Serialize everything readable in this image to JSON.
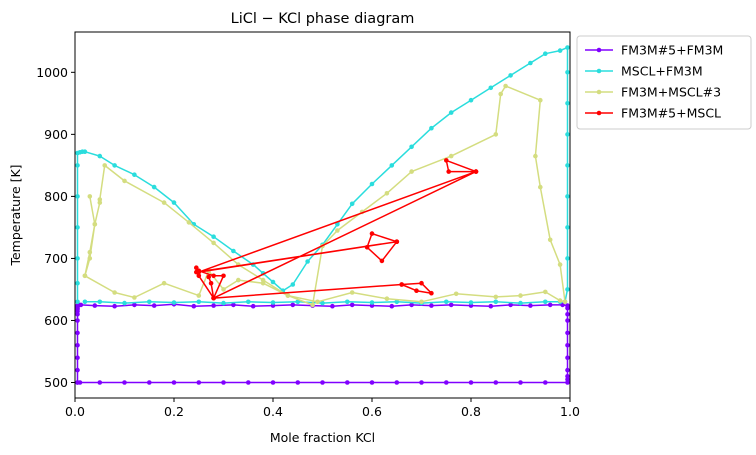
{
  "chart_data": {
    "type": "line",
    "title": "LiCl − KCl phase diagram",
    "xlabel": "Mole fraction KCl",
    "ylabel": "Temperature [K]",
    "xlim": [
      0.0,
      1.0
    ],
    "ylim": [
      475,
      1065
    ],
    "xticks": [
      0.0,
      0.2,
      0.4,
      0.6,
      0.8,
      1.0
    ],
    "xtick_labels": [
      "0.0",
      "0.2",
      "0.4",
      "0.6",
      "0.8",
      "1.0"
    ],
    "yticks": [
      500,
      600,
      700,
      800,
      900,
      1000
    ],
    "ytick_labels": [
      "500",
      "600",
      "700",
      "800",
      "900",
      "1000"
    ],
    "grid": false,
    "legend_position": "outside-top-right",
    "series": [
      {
        "name": "FM3M#5+FM3M",
        "color": "#8000ff",
        "x": [
          0.005,
          0.005,
          0.005,
          0.005,
          0.005,
          0.005,
          0.005,
          0.005,
          0.005,
          0.005,
          0.005,
          0.005,
          0.008,
          0.012,
          0.04,
          0.08,
          0.12,
          0.16,
          0.2,
          0.24,
          0.28,
          0.32,
          0.36,
          0.4,
          0.44,
          0.48,
          0.52,
          0.56,
          0.6,
          0.64,
          0.68,
          0.72,
          0.76,
          0.8,
          0.84,
          0.88,
          0.92,
          0.96,
          0.985,
          0.995,
          0.995,
          0.995,
          0.995,
          0.995,
          0.995,
          0.995,
          0.995,
          0.995,
          0.995,
          0.995,
          0.95,
          0.9,
          0.85,
          0.8,
          0.75,
          0.7,
          0.65,
          0.6,
          0.55,
          0.5,
          0.45,
          0.4,
          0.35,
          0.3,
          0.25,
          0.2,
          0.15,
          0.1,
          0.05,
          0.01,
          0.005
        ],
        "y": [
          500,
          520,
          540,
          560,
          580,
          600,
          610,
          615,
          618,
          620,
          622,
          624,
          625,
          625,
          624,
          623,
          625,
          624,
          626,
          623,
          624,
          625,
          623,
          624,
          625,
          624,
          623,
          625,
          624,
          623,
          625,
          624,
          625,
          624,
          623,
          625,
          624,
          625,
          625,
          624,
          620,
          610,
          600,
          580,
          560,
          540,
          520,
          510,
          505,
          500,
          500,
          500,
          500,
          500,
          500,
          500,
          500,
          500,
          500,
          500,
          500,
          500,
          500,
          500,
          500,
          500,
          500,
          500,
          500,
          500,
          500
        ]
      },
      {
        "name": "MSCL+FM3M",
        "color": "#2adddd",
        "x": [
          0.005,
          0.005,
          0.005,
          0.005,
          0.005,
          0.005,
          0.005,
          0.01,
          0.015,
          0.02,
          0.05,
          0.08,
          0.12,
          0.16,
          0.2,
          0.24,
          0.28,
          0.32,
          0.36,
          0.38,
          0.4,
          0.42,
          0.44,
          0.47,
          0.5,
          0.53,
          0.56,
          0.6,
          0.64,
          0.68,
          0.72,
          0.76,
          0.8,
          0.84,
          0.88,
          0.92,
          0.95,
          0.98,
          0.995,
          0.995,
          0.995,
          0.995,
          0.995,
          0.995,
          0.995,
          0.995,
          0.995,
          0.99,
          0.98,
          0.95,
          0.9,
          0.85,
          0.8,
          0.75,
          0.7,
          0.65,
          0.6,
          0.55,
          0.5,
          0.45,
          0.4,
          0.35,
          0.3,
          0.25,
          0.2,
          0.15,
          0.1,
          0.05,
          0.02
        ],
        "y": [
          630,
          660,
          700,
          750,
          800,
          850,
          870,
          871,
          872,
          872,
          865,
          850,
          835,
          815,
          790,
          755,
          735,
          712,
          690,
          676,
          662,
          648,
          658,
          695,
          722,
          755,
          788,
          820,
          850,
          880,
          910,
          935,
          955,
          975,
          995,
          1015,
          1030,
          1035,
          1040,
          1000,
          950,
          900,
          850,
          800,
          750,
          700,
          650,
          630,
          630,
          630,
          628,
          630,
          629,
          630,
          628,
          630,
          629,
          630,
          628,
          630,
          629,
          630,
          628,
          630,
          629,
          630,
          628,
          630,
          630
        ]
      },
      {
        "name": "FM3M+MSCL#3",
        "color": "#d4dd80",
        "x": [
          0.02,
          0.03,
          0.04,
          0.05,
          0.05,
          0.06,
          0.1,
          0.18,
          0.23,
          0.28,
          0.33,
          0.38,
          0.43,
          0.48,
          0.5,
          0.53,
          0.58,
          0.63,
          0.68,
          0.76,
          0.85,
          0.86,
          0.87,
          0.94,
          0.93,
          0.94,
          0.96,
          0.98,
          0.99,
          0.98,
          0.95,
          0.9,
          0.85,
          0.77,
          0.7,
          0.63,
          0.56,
          0.49,
          0.43,
          0.38,
          0.33,
          0.3,
          0.27,
          0.25,
          0.18,
          0.12,
          0.08,
          0.02,
          0.03,
          0.04,
          0.03
        ],
        "y": [
          672,
          710,
          755,
          790,
          795,
          850,
          825,
          790,
          758,
          725,
          690,
          665,
          640,
          625,
          720,
          745,
          775,
          805,
          840,
          865,
          900,
          965,
          978,
          955,
          865,
          815,
          730,
          690,
          630,
          632,
          646,
          640,
          638,
          643,
          630,
          635,
          645,
          630,
          640,
          660,
          665,
          650,
          680,
          640,
          660,
          637,
          645,
          672,
          700,
          755,
          800
        ]
      },
      {
        "name": "FM3M#5+MSCL",
        "color": "#ff0000",
        "x": [
          0.245,
          0.25,
          0.28,
          0.3,
          0.28,
          0.25,
          0.245,
          0.65,
          0.6,
          0.59,
          0.62,
          0.65,
          0.25,
          0.81,
          0.75,
          0.755,
          0.81,
          0.28,
          0.66,
          0.7,
          0.72,
          0.69,
          0.66,
          0.28,
          0.275,
          0.27
        ],
        "y": [
          685,
          680,
          672,
          672,
          636,
          672,
          678,
          727,
          740,
          718,
          696,
          727,
          678,
          840,
          858,
          840,
          840,
          636,
          658,
          660,
          644,
          648,
          658,
          636,
          660,
          670
        ]
      }
    ]
  }
}
